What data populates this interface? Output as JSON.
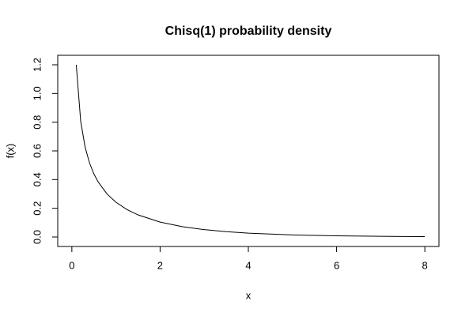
{
  "chart_data": {
    "type": "line",
    "title": "Chisq(1) probability density",
    "x_label": "x",
    "y_label": "f(x)",
    "x": [
      0.1,
      0.2,
      0.3,
      0.4,
      0.5,
      0.6,
      0.8,
      1,
      1.25,
      1.5,
      2,
      2.5,
      3,
      3.5,
      4,
      5,
      6,
      7,
      8
    ],
    "series": [
      {
        "name": "f(x)",
        "color": "#000000",
        "values": [
          1.2,
          0.807,
          0.627,
          0.516,
          0.439,
          0.382,
          0.299,
          0.242,
          0.191,
          0.154,
          0.104,
          0.0723,
          0.0514,
          0.0371,
          0.027,
          0.0146,
          0.0081,
          0.0046,
          0.0026
        ]
      }
    ],
    "xlim": [
      -0.32,
      8.32
    ],
    "ylim": [
      -0.066,
      1.266
    ],
    "xticks": [
      0,
      2,
      4,
      6,
      8
    ],
    "yticks": [
      {
        "value": 0,
        "label": "0.0"
      },
      {
        "value": 0.2,
        "label": "0.2"
      },
      {
        "value": 0.4,
        "label": "0.4"
      },
      {
        "value": 0.6,
        "label": "0.6"
      },
      {
        "value": 0.8,
        "label": "0.8"
      },
      {
        "value": 1,
        "label": "1.0"
      },
      {
        "value": 1.2,
        "label": "1.2"
      }
    ],
    "grid": false
  }
}
